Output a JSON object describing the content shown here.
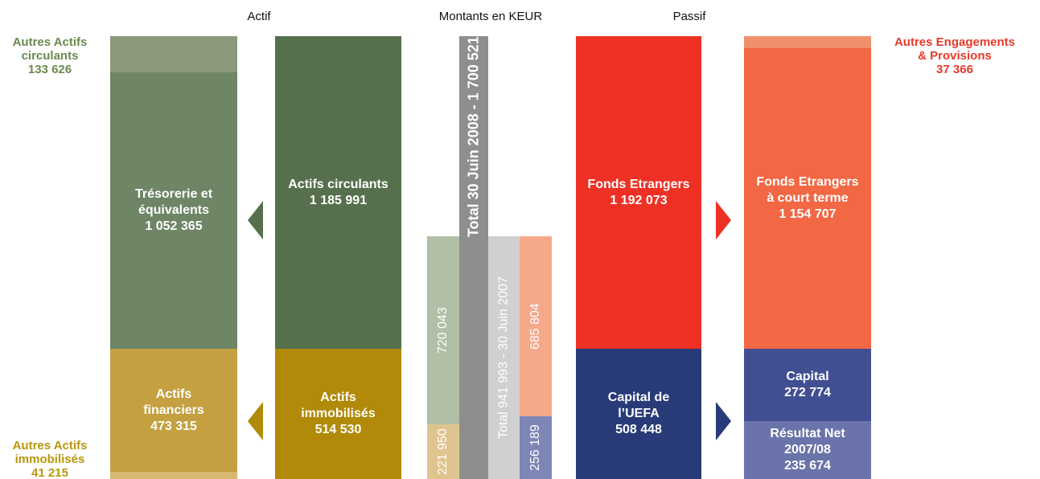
{
  "header": {
    "actif": "Actif",
    "unit": "Montants en KEUR",
    "passif": "Passif"
  },
  "notes": {
    "other_current_assets": [
      "Autres Actifs",
      "circulants",
      "133 626"
    ],
    "other_fixed_assets": [
      "Autres Actifs",
      "immobilisés",
      "41 215"
    ],
    "other_liabilities": [
      "Autres Engagements",
      "& Provisions",
      "37 366"
    ]
  },
  "blocks": {
    "cash": [
      "Trésorerie et",
      "équivalents",
      "1 052 365"
    ],
    "current_assets": [
      "Actifs circulants",
      "1 185 991"
    ],
    "financial_assets": [
      "Actifs",
      "financiers",
      "473 315"
    ],
    "fixed_assets": [
      "Actifs",
      "immobilisés",
      "514 530"
    ],
    "foreign_funds": [
      "Fonds Etrangers",
      "1 192 073"
    ],
    "short_term": [
      "Fonds Etrangers",
      "à court terme",
      "1 154 707"
    ],
    "uefa_capital": [
      "Capital de",
      "l’UEFA",
      "508 448"
    ],
    "capital": [
      "Capital",
      "272 774"
    ],
    "net_result": [
      "Résultat Net",
      "2007/08",
      "235 674"
    ]
  },
  "bars": {
    "total_2008": "Total 30 Juin 2008 - 1 700 521",
    "total_2007": "Total 941 993 - 30 Juin 2007",
    "assets_current_2007": "720 043",
    "assets_fixed_2007": "221 950",
    "liab_foreign_2007": "685 804",
    "liab_capital_2007": "256 189"
  }
}
